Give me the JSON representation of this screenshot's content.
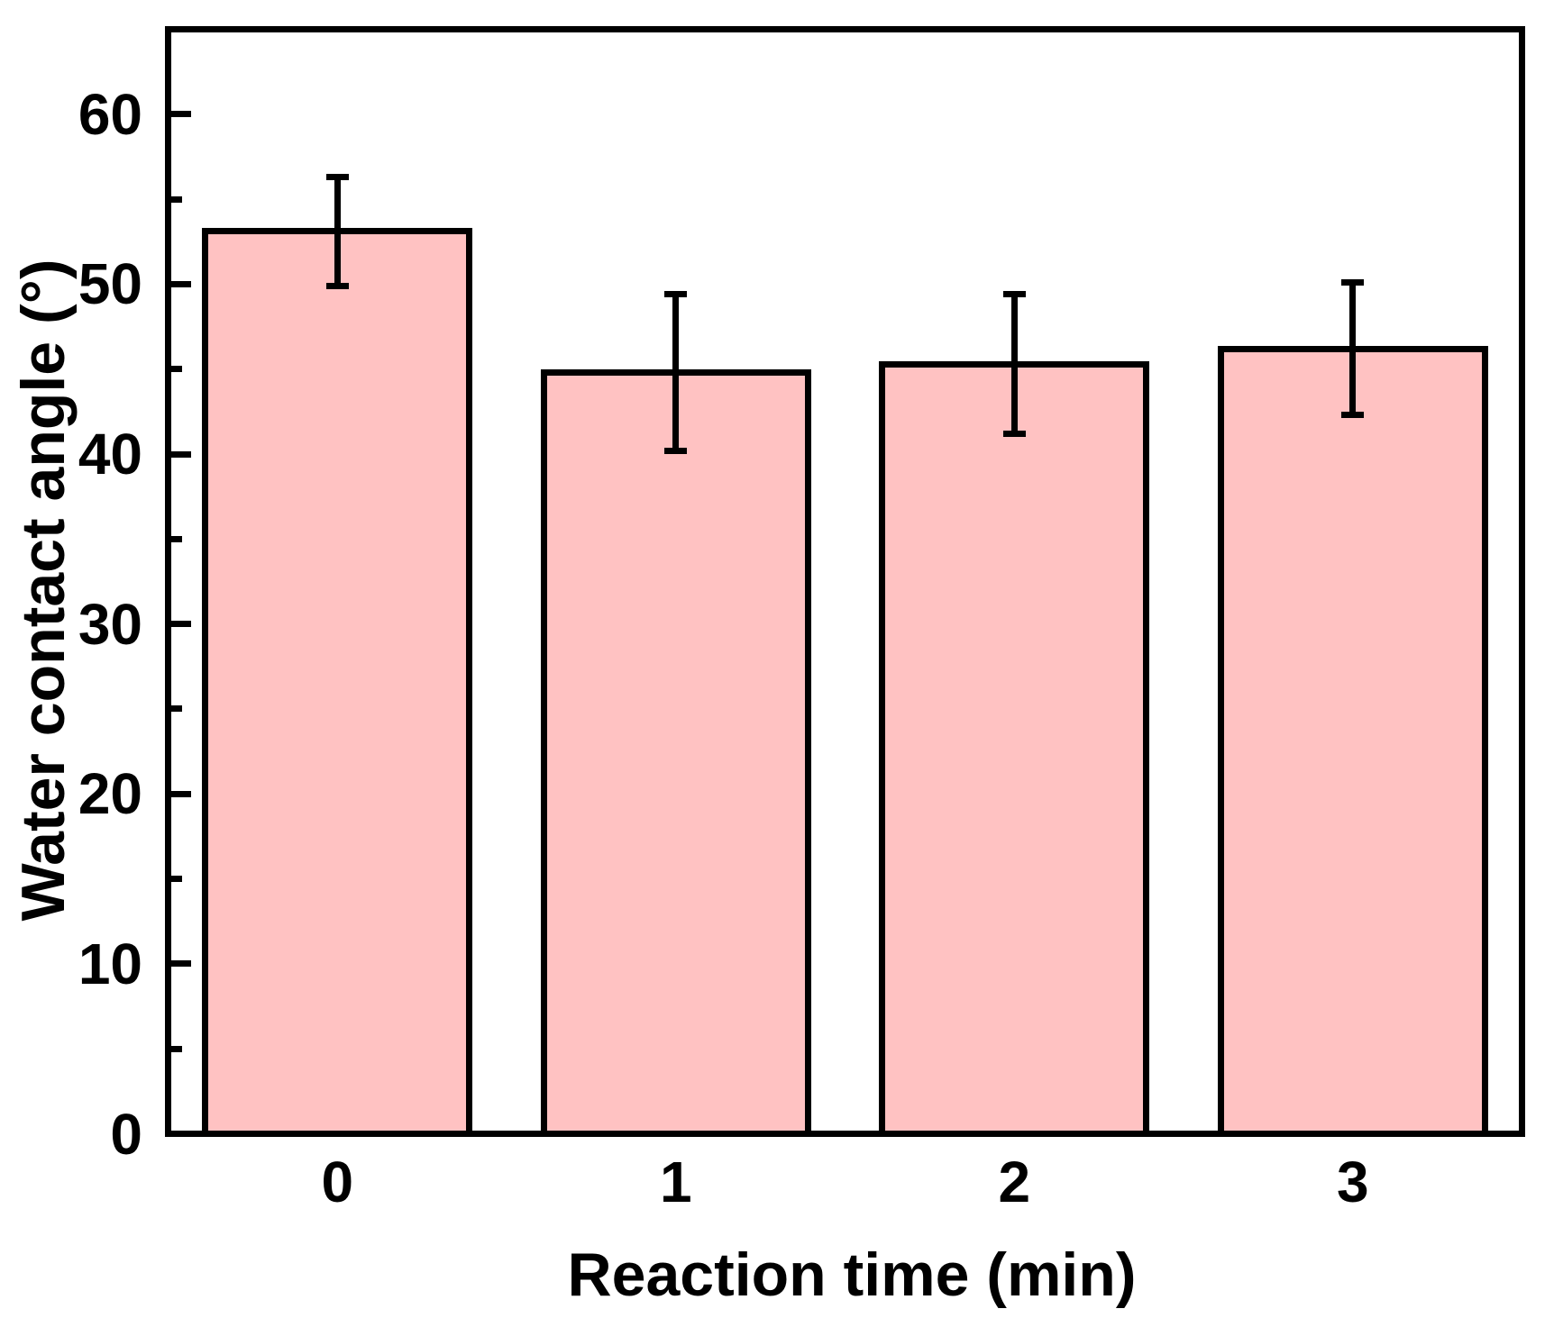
{
  "chart_data": {
    "type": "bar",
    "title": "",
    "xlabel": "Reaction time (min)",
    "ylabel": "Water contact angle (°)",
    "categories": [
      "0",
      "1",
      "2",
      "3"
    ],
    "values": [
      53.1,
      44.8,
      45.3,
      46.2
    ],
    "errors": [
      3.2,
      4.6,
      4.1,
      3.9
    ],
    "ylim": [
      0,
      65
    ],
    "yticks": [
      0,
      10,
      20,
      30,
      40,
      50,
      60
    ],
    "yticks_minor": [
      5,
      15,
      25,
      35,
      45,
      55
    ],
    "bar_color": "#ffc2c2",
    "bar_edge_color": "#000000",
    "axis_color": "#000000",
    "background": "#ffffff",
    "legend": "none",
    "grid": false
  }
}
